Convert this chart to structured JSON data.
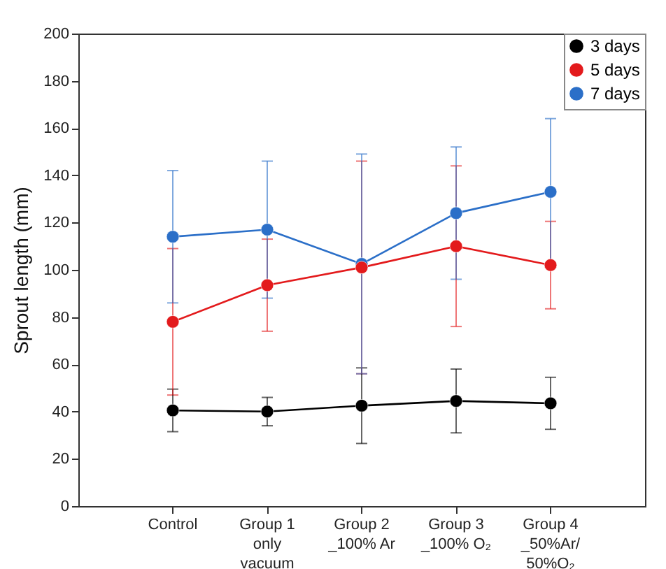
{
  "chart_data": {
    "type": "line",
    "ylabel": "Sprout length (mm)",
    "categories": [
      "Control",
      "Group 1\nonly\nvacuum",
      "Group 2\n_100% Ar",
      "Group 3\n_100% O₂",
      "Group 4\n_50%Ar/\n50%O₂"
    ],
    "ylim": [
      0,
      200
    ],
    "yticks": [
      0,
      20,
      40,
      60,
      80,
      100,
      120,
      140,
      160,
      180,
      200
    ],
    "legend": "top right",
    "marker": "circle",
    "grid": false,
    "series": [
      {
        "name": "3 days",
        "color": "#000000",
        "values": [
          40.5,
          40,
          42.5,
          44.5,
          43.5
        ],
        "errors": [
          9,
          6,
          16,
          13.5,
          11
        ]
      },
      {
        "name": "5 days",
        "color": "#e31a1c",
        "values": [
          78,
          93.5,
          101,
          110,
          102
        ],
        "errors": [
          31,
          19.5,
          45,
          34,
          18.5
        ]
      },
      {
        "name": "7 days",
        "color": "#2b6fc8",
        "values": [
          114,
          117,
          102.5,
          124,
          133
        ],
        "errors": [
          28,
          29,
          46.5,
          28,
          31
        ]
      }
    ]
  }
}
